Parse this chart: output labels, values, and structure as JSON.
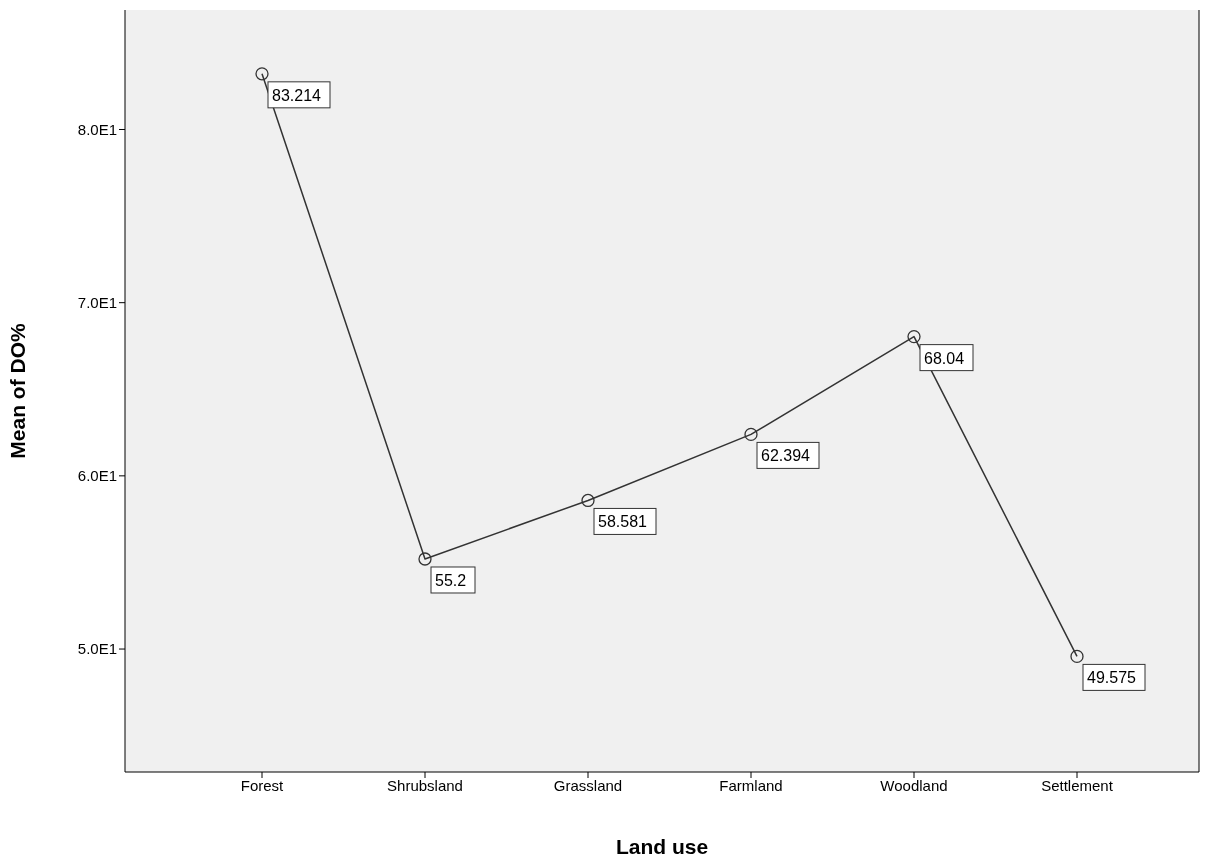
{
  "chart_data": {
    "type": "line",
    "xlabel": "Land use",
    "ylabel": "Mean of DO%",
    "categories": [
      "Forest",
      "Shrubsland",
      "Grassland",
      "Farmland",
      "Woodland",
      "Settlement"
    ],
    "values": [
      83.214,
      55.2,
      58.581,
      62.394,
      68.04,
      49.575
    ],
    "color": "#333333",
    "marker": "circle",
    "line_style": "solid",
    "data_labels": true,
    "grid": false,
    "legend": false,
    "ylim": [
      42.9,
      86.9
    ],
    "yticks": [
      {
        "value": 50,
        "label": "5.0E1"
      },
      {
        "value": 60,
        "label": "6.0E1"
      },
      {
        "value": 70,
        "label": "7.0E1"
      },
      {
        "value": 80,
        "label": "8.0E1"
      }
    ]
  }
}
